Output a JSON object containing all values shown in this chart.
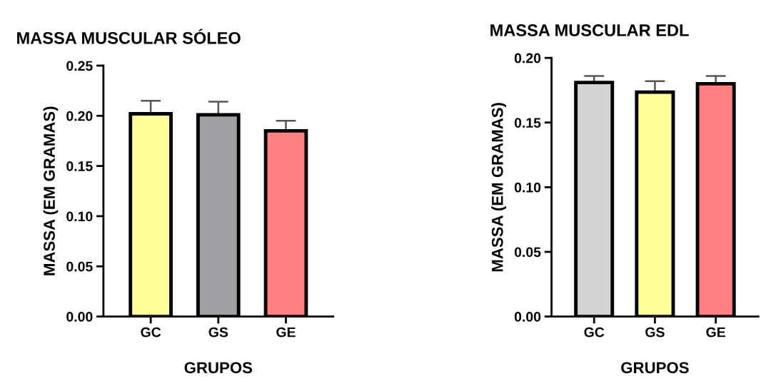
{
  "chart_data": [
    {
      "type": "bar",
      "title": "MASSA MUSCULAR SÓLEO",
      "xlabel": "GRUPOS",
      "ylabel": "MASSA (EM GRAMAS)",
      "categories": [
        "GC",
        "GS",
        "GE"
      ],
      "values": [
        0.202,
        0.201,
        0.185
      ],
      "colors": [
        "#ffff99",
        "#a0a0a4",
        "#ff8080"
      ],
      "errors": [
        [
          0.202,
          0.215
        ],
        [
          0.201,
          0.214
        ],
        [
          0.185,
          0.195
        ]
      ],
      "ylim": [
        0,
        0.25
      ],
      "yticks": [
        {
          "value": 0,
          "label": "0.00"
        },
        {
          "value": 0.05,
          "label": "0.05"
        },
        {
          "value": 0.1,
          "label": "0.10"
        },
        {
          "value": 0.15,
          "label": "0.15"
        },
        {
          "value": 0.2,
          "label": "0.20"
        },
        {
          "value": 0.25,
          "label": "0.25"
        }
      ],
      "grid": false
    },
    {
      "type": "bar",
      "title": "MASSA MUSCULAR EDL",
      "xlabel": "GRUPOS",
      "ylabel": "MASSA (EM GRAMAS)",
      "categories": [
        "GC",
        "GS",
        "GE"
      ],
      "values": [
        0.181,
        0.1735,
        0.18
      ],
      "colors": [
        "#d3d3d3",
        "#ffff99",
        "#ff8080"
      ],
      "errors": [
        [
          0.181,
          0.186
        ],
        [
          0.1735,
          0.182
        ],
        [
          0.18,
          0.186
        ]
      ],
      "ylim": [
        0,
        0.2
      ],
      "yticks": [
        {
          "value": 0,
          "label": "0.00"
        },
        {
          "value": 0.05,
          "label": "0.05"
        },
        {
          "value": 0.1,
          "label": "0.10"
        },
        {
          "value": 0.15,
          "label": "0.15"
        },
        {
          "value": 0.2,
          "label": "0.20"
        }
      ],
      "grid": false
    }
  ]
}
